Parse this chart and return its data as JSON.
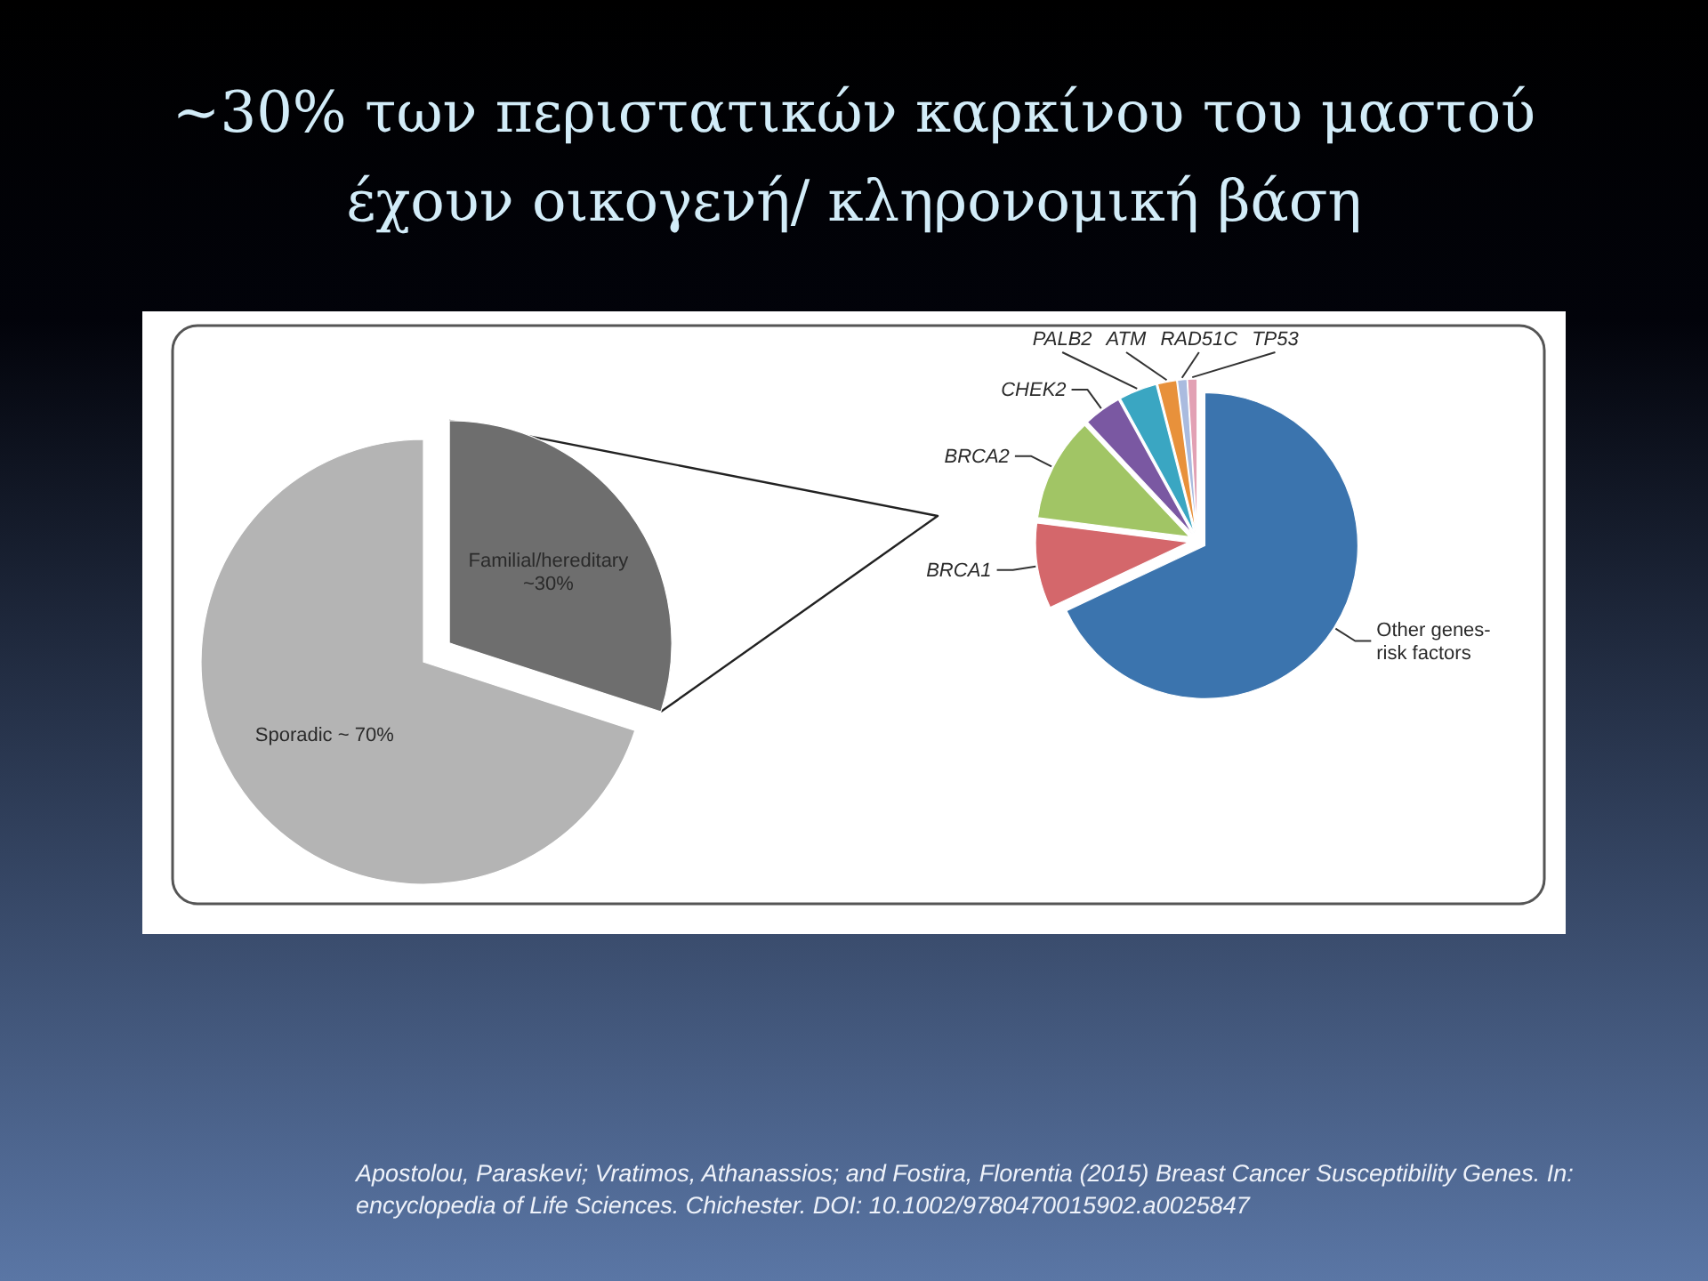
{
  "chart_data": [
    {
      "type": "pie",
      "title": "~30% των περιστατικών καρκίνου του μαστού έχουν οικογενή/ κληρονομική βάση",
      "categories": [
        "Familial/hereditary",
        "Sporadic"
      ],
      "values": [
        30,
        70
      ],
      "value_labels": [
        "~30%",
        "~ 70%"
      ],
      "colors": [
        "#6e6e6e",
        "#b4b4b4"
      ],
      "annotations": [
        "Apostolou, Paraskevi; Vratimos, Athanassios; and Fostira, Florentia (2015) Breast Cancer Susceptibility Genes. In: encyclopedia of Life Sciences. Chichester. DOI: 10.1002/9780470015902.a0025847"
      ]
    },
    {
      "type": "pie",
      "categories": [
        "Other genes-risk factors",
        "BRCA1",
        "BRCA2",
        "CHEK2",
        "PALB2",
        "ATM",
        "RAD51C",
        "TP53"
      ],
      "values": [
        68,
        9,
        11,
        4,
        4,
        2,
        1,
        1
      ],
      "colors": [
        "#3b74ae",
        "#d4676b",
        "#a1c565",
        "#7a58a2",
        "#3aa6c2",
        "#e8913b",
        "#aabbdf",
        "#e2a1b4"
      ]
    }
  ]
}
